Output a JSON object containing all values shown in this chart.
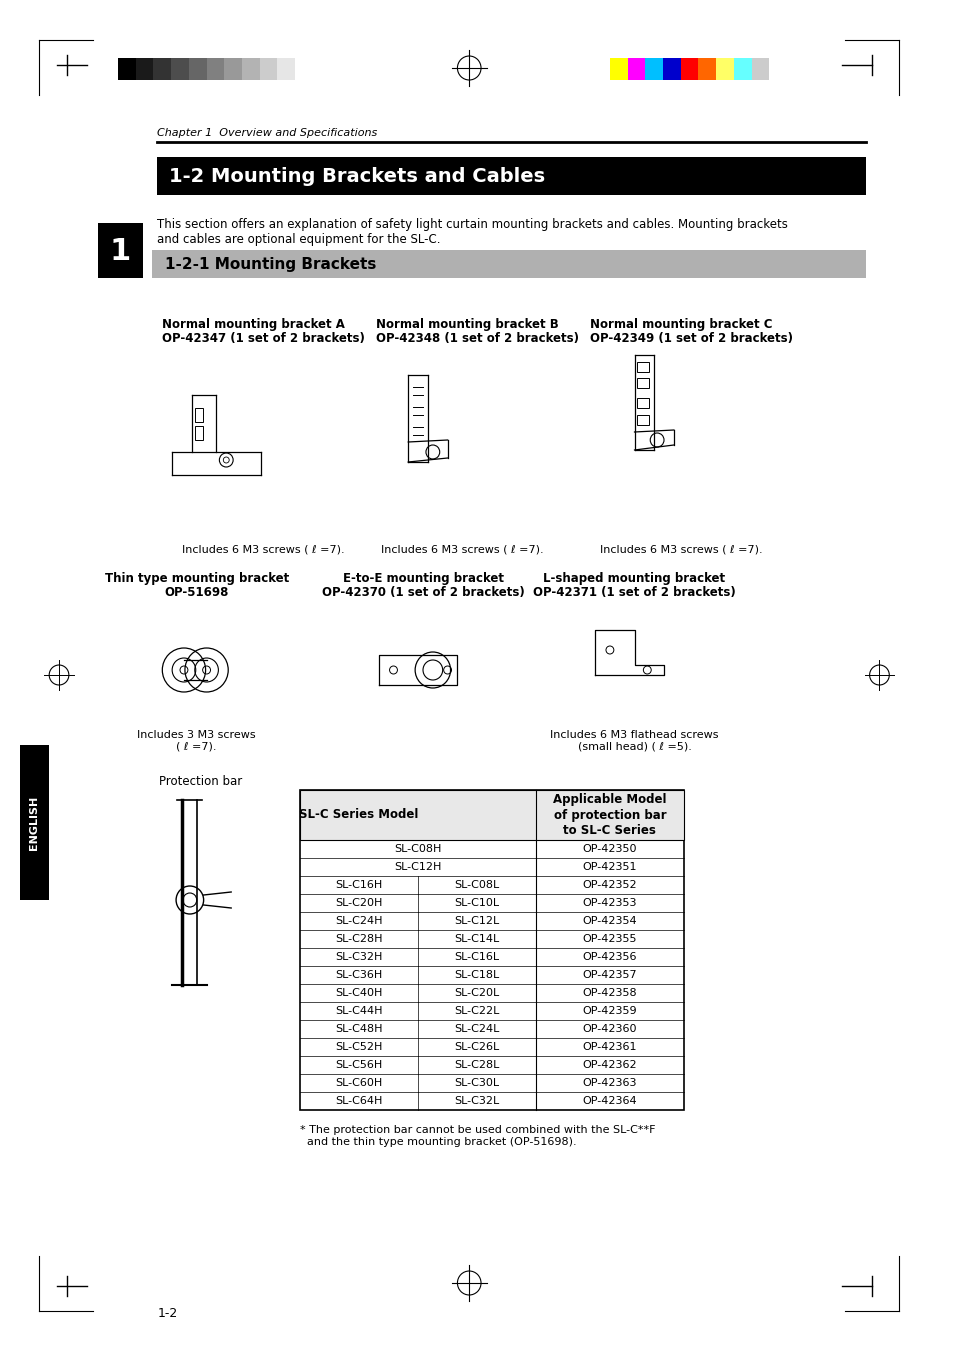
{
  "page_bg": "#ffffff",
  "top_bar_grayscale_colors": [
    "#000000",
    "#1a1a1a",
    "#333333",
    "#4d4d4d",
    "#666666",
    "#808080",
    "#999999",
    "#b3b3b3",
    "#cccccc",
    "#e6e6e6",
    "#ffffff"
  ],
  "top_bar_color_colors": [
    "#ffff00",
    "#ff00ff",
    "#00bfff",
    "#0000cc",
    "#ff0000",
    "#ff6600",
    "#ffff66",
    "#66ffff",
    "#cccccc"
  ],
  "chapter_label": "Chapter 1  Overview and Specifications",
  "section_title": "1-2 Mounting Brackets and Cables",
  "section_body": "This section offers an explanation of safety light curtain mounting brackets and cables. Mounting brackets\nand cables are optional equipment for the SL-C.",
  "subsection_title": "1-2-1 Mounting Brackets",
  "bracket_A_title": "Normal mounting bracket A",
  "bracket_A_part": "OP-42347 (1 set of 2 brackets)",
  "bracket_B_title": "Normal mounting bracket B",
  "bracket_B_part": "OP-42348 (1 set of 2 brackets)",
  "bracket_C_title": "Normal mounting bracket C",
  "bracket_C_part": "OP-42349 (1 set of 2 brackets)",
  "includes_ABC": "Includes 6 M3 screws ( ℓ =7).",
  "thin_title": "Thin type mounting bracket",
  "thin_part": "OP-51698",
  "etoe_title": "E-to-E mounting bracket",
  "etoe_part": "OP-42370 (1 set of 2 brackets)",
  "lshaped_title": "L-shaped mounting bracket",
  "lshaped_part": "OP-42371 (1 set of 2 brackets)",
  "thin_includes": "Includes 3 M3 screws\n( ℓ =7).",
  "lshaped_includes": "Includes 6 M3 flathead screws\n(small head) ( ℓ =5).",
  "protection_label": "Protection bar",
  "table_header_col1": "SL-C Series Model",
  "table_header_col2": "Applicable Model\nof protection bar\nto SL-C Series",
  "table_data": [
    [
      "SL-C08H",
      "",
      "OP-42350"
    ],
    [
      "SL-C12H",
      "",
      "OP-42351"
    ],
    [
      "SL-C16H",
      "SL-C08L",
      "OP-42352"
    ],
    [
      "SL-C20H",
      "SL-C10L",
      "OP-42353"
    ],
    [
      "SL-C24H",
      "SL-C12L",
      "OP-42354"
    ],
    [
      "SL-C28H",
      "SL-C14L",
      "OP-42355"
    ],
    [
      "SL-C32H",
      "SL-C16L",
      "OP-42356"
    ],
    [
      "SL-C36H",
      "SL-C18L",
      "OP-42357"
    ],
    [
      "SL-C40H",
      "SL-C20L",
      "OP-42358"
    ],
    [
      "SL-C44H",
      "SL-C22L",
      "OP-42359"
    ],
    [
      "SL-C48H",
      "SL-C24L",
      "OP-42360"
    ],
    [
      "SL-C52H",
      "SL-C26L",
      "OP-42361"
    ],
    [
      "SL-C56H",
      "SL-C28L",
      "OP-42362"
    ],
    [
      "SL-C60H",
      "SL-C30L",
      "OP-42363"
    ],
    [
      "SL-C64H",
      "SL-C32L",
      "OP-42364"
    ]
  ],
  "footnote": "* The protection bar cannot be used combined with the SL-C**F\n  and the thin type mounting bracket (OP-51698).",
  "page_number": "1-2",
  "side_tab_color": "#000000",
  "side_tab_text": "ENGLISH",
  "section_title_bg": "#000000",
  "section_title_color": "#ffffff",
  "subsection_bg": "#b0b0b0",
  "subsection_color": "#000000"
}
